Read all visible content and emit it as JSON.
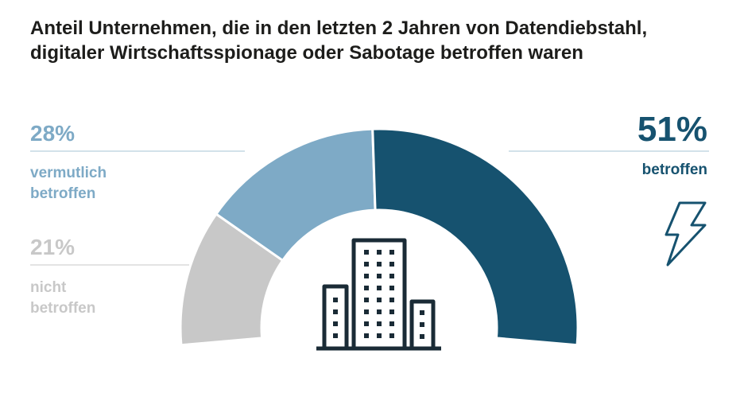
{
  "title_lines": [
    "Anteil Unternehmen, die in den letzten 2 Jahren von Datendiebstahl,",
    "digitaler Wirtschaftsspionage oder Sabotage betroffen waren"
  ],
  "chart_data": {
    "type": "pie",
    "variant": "half-donut",
    "title": "Anteil Unternehmen, die in den letzten 2 Jahren von Datendiebstahl, digitaler Wirtschaftsspionage oder Sabotage betroffen waren",
    "slices": [
      {
        "key": "nicht",
        "label_lines": [
          "nicht",
          "betroffen"
        ],
        "value": 21,
        "value_label": "21%",
        "color": "#c8c8c8"
      },
      {
        "key": "vermutlich",
        "label_lines": [
          "vermutlich",
          "betroffen"
        ],
        "value": 28,
        "value_label": "28%",
        "color": "#7eaac6"
      },
      {
        "key": "betroffen",
        "label_lines": [
          "betroffen"
        ],
        "value": 51,
        "value_label": "51%",
        "color": "#16526f"
      }
    ],
    "unit": "%"
  },
  "colors": {
    "text": "#1d1d1b",
    "icon": "#1a2b36",
    "leader_line": "#a7c4d6"
  },
  "icons": [
    "building-icon",
    "lightning-bolt-icon"
  ]
}
